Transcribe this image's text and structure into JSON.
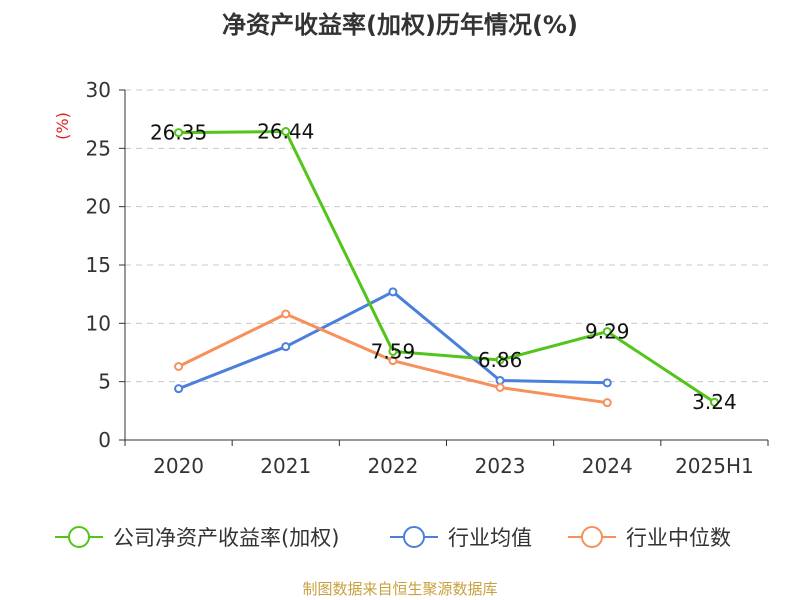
{
  "chart_data": {
    "type": "line",
    "title": "净资产收益率(加权)历年情况(%)",
    "ylabel": "(%)",
    "ylim": [
      0,
      30
    ],
    "yticks": [
      0,
      5,
      10,
      15,
      20,
      25,
      30
    ],
    "grid": true,
    "legend_position": "bottom",
    "categories": [
      "2020",
      "2021",
      "2022",
      "2023",
      "2024",
      "2025H1"
    ],
    "series": [
      {
        "name": "公司净资产收益率(加权)",
        "color": "#52c41a",
        "values": [
          26.35,
          26.44,
          7.59,
          6.86,
          9.29,
          3.24
        ],
        "labels": [
          "26.35",
          "26.44",
          "7.59",
          "6.86",
          "9.29",
          "3.24"
        ]
      },
      {
        "name": "行业均值",
        "color": "#4a7fdc",
        "values": [
          4.4,
          8.0,
          12.7,
          5.1,
          4.9,
          null
        ]
      },
      {
        "name": "行业中位数",
        "color": "#f7905a",
        "values": [
          6.3,
          10.8,
          6.8,
          4.5,
          3.2,
          null
        ]
      }
    ],
    "footer": "制图数据来自恒生聚源数据库"
  }
}
